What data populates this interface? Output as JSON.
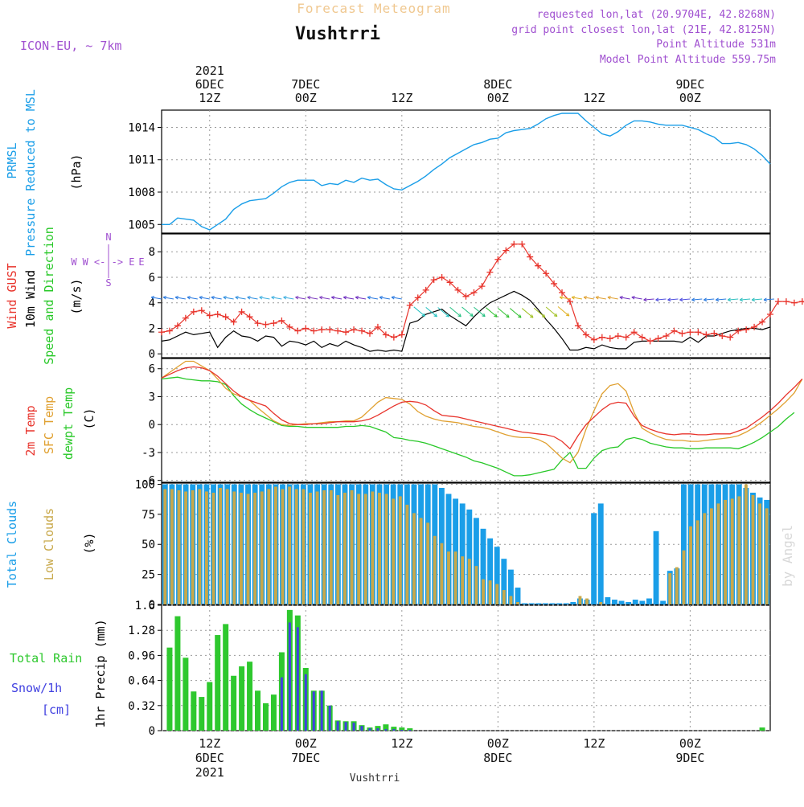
{
  "header": {
    "product_title": "Forecast Meteogram",
    "station": "Vushtrri",
    "model": "ICON-EU, ~ 7km",
    "requested": "requested lon,lat (20.9704E, 42.8268N)",
    "gridpoint": "grid point closest lon,lat (21E, 42.8125N)",
    "point_alt": "Point Altitude 531m",
    "model_alt": "Model Point Altitude 559.75m",
    "watermark": "by Angel",
    "footer_station": "Vushtrri"
  },
  "colors": {
    "pressure": "#1a9ee8",
    "gust": "#e8342c",
    "wind": "#000000",
    "t2m": "#e8342c",
    "sfc": "#e0a030",
    "dewpt": "#28c828",
    "total_clouds": "#1a9ee8",
    "low_clouds": "#c8a84a",
    "rain": "#2ec82e",
    "snow": "#4040e0",
    "meta": "#a050d0",
    "title_faint": "#f0c890"
  },
  "chart_data": {
    "time_axis": {
      "start_hour": 0,
      "end_hour": 76,
      "top_labels": [
        {
          "hour": 6,
          "lines": [
            "2021",
            "6DEC",
            "12Z"
          ]
        },
        {
          "hour": 18,
          "lines": [
            "7DEC",
            "00Z"
          ]
        },
        {
          "hour": 30,
          "lines": [
            "12Z"
          ]
        },
        {
          "hour": 42,
          "lines": [
            "8DEC",
            "00Z"
          ]
        },
        {
          "hour": 54,
          "lines": [
            "12Z"
          ]
        },
        {
          "hour": 66,
          "lines": [
            "9DEC",
            "00Z"
          ]
        }
      ],
      "bottom_labels": [
        {
          "hour": 6,
          "lines": [
            "12Z",
            "6DEC",
            "2021"
          ]
        },
        {
          "hour": 18,
          "lines": [
            "00Z",
            "7DEC"
          ]
        },
        {
          "hour": 30,
          "lines": [
            "12Z"
          ]
        },
        {
          "hour": 42,
          "lines": [
            "00Z",
            "8DEC"
          ]
        },
        {
          "hour": 54,
          "lines": [
            "12Z"
          ]
        },
        {
          "hour": 66,
          "lines": [
            "00Z",
            "9DEC"
          ]
        }
      ]
    },
    "pressure": {
      "type": "line",
      "ylabel_lines": [
        "PRMSL",
        "Pressure Reduced to MSL"
      ],
      "unit": "(hPa)",
      "ylim": [
        1004.2,
        1015.6
      ],
      "ticks": [
        1005,
        1008,
        1011,
        1014
      ],
      "values": [
        1005.0,
        1005.0,
        1005.6,
        1005.5,
        1005.4,
        1004.8,
        1004.5,
        1005.0,
        1005.5,
        1006.4,
        1006.9,
        1007.2,
        1007.3,
        1007.4,
        1007.9,
        1008.5,
        1008.9,
        1009.1,
        1009.1,
        1009.1,
        1008.6,
        1008.8,
        1008.7,
        1009.1,
        1008.9,
        1009.3,
        1009.1,
        1009.2,
        1008.7,
        1008.3,
        1008.2,
        1008.6,
        1009.0,
        1009.5,
        1010.1,
        1010.6,
        1011.2,
        1011.6,
        1012.0,
        1012.4,
        1012.6,
        1012.9,
        1013.0,
        1013.5,
        1013.7,
        1013.8,
        1013.9,
        1014.3,
        1014.8,
        1015.1,
        1015.3,
        1015.3,
        1015.3,
        1014.6,
        1014.0,
        1013.4,
        1013.2,
        1013.6,
        1014.2,
        1014.6,
        1014.6,
        1014.5,
        1014.3,
        1014.2,
        1014.2,
        1014.2,
        1014.0,
        1013.8,
        1013.4,
        1013.1,
        1012.5,
        1012.5,
        1012.6,
        1012.4,
        1012.0,
        1011.4,
        1010.6
      ]
    },
    "wind": {
      "type": "line",
      "ylabel_gust": "Wind GUST",
      "ylabel_wind": "10m Wind",
      "ylabel_dir": "Speed and Direction",
      "unit": "(m/s)",
      "compass": {
        "n": "N",
        "s": "S",
        "w": "W",
        "e": "E",
        "we_line": "W <-|-> E"
      },
      "ylim": [
        -0.3,
        9.4
      ],
      "ticks": [
        0,
        2,
        4,
        6,
        8
      ],
      "gust": [
        1.7,
        1.8,
        2.2,
        2.8,
        3.3,
        3.4,
        3.0,
        3.1,
        2.9,
        2.5,
        3.3,
        2.9,
        2.4,
        2.3,
        2.4,
        2.6,
        2.1,
        1.8,
        2.0,
        1.8,
        1.9,
        1.9,
        1.8,
        1.7,
        1.9,
        1.8,
        1.6,
        2.1,
        1.5,
        1.3,
        1.5,
        3.8,
        4.4,
        5.0,
        5.8,
        6.0,
        5.6,
        5.0,
        4.5,
        4.8,
        5.3,
        6.4,
        7.4,
        8.1,
        8.6,
        8.6,
        7.6,
        6.9,
        6.3,
        5.5,
        4.8,
        4.1,
        2.2,
        1.5,
        1.1,
        1.3,
        1.2,
        1.4,
        1.3,
        1.7,
        1.3,
        1.0,
        1.2,
        1.4,
        1.8,
        1.6,
        1.7,
        1.7,
        1.5,
        1.6,
        1.4,
        1.3,
        1.8,
        1.9,
        2.1,
        2.5,
        3.1,
        4.1,
        4.1,
        4.0,
        4.1,
        3.9,
        3.8,
        3.9
      ]
    },
    "wind10m": {
      "values": [
        1.0,
        1.1,
        1.4,
        1.7,
        1.5,
        1.6,
        1.7,
        0.5,
        1.3,
        1.8,
        1.4,
        1.3,
        1.0,
        1.4,
        1.3,
        0.6,
        1.0,
        0.9,
        0.7,
        1.0,
        0.5,
        0.8,
        0.6,
        1.0,
        0.7,
        0.5,
        0.2,
        0.3,
        0.2,
        0.3,
        0.2,
        2.4,
        2.6,
        3.1,
        3.3,
        3.5,
        3.0,
        2.6,
        2.2,
        2.9,
        3.5,
        4.0,
        4.3,
        4.6,
        4.9,
        4.6,
        4.2,
        3.5,
        2.7,
        2.0,
        1.2,
        0.3,
        0.3,
        0.5,
        0.4,
        0.7,
        0.5,
        0.4,
        0.4,
        0.9,
        1.0,
        1.0,
        1.0,
        1.0,
        1.0,
        0.9,
        1.3,
        0.9,
        1.4,
        1.4,
        1.6,
        1.8,
        1.9,
        2.0,
        2.0,
        1.9,
        2.1
      ]
    },
    "temperature": {
      "type": "line",
      "ylabel_t2m": "2m Temp",
      "ylabel_sfc": "SFC Temp",
      "ylabel_dew": "dewpt Temp",
      "unit": "(C)",
      "ylim": [
        -6.2,
        7.1
      ],
      "ticks": [
        -6,
        -3,
        0,
        3,
        6
      ],
      "t2m": [
        5.0,
        5.4,
        5.8,
        6.1,
        6.2,
        6.1,
        5.8,
        5.2,
        4.4,
        3.6,
        3.0,
        2.6,
        2.3,
        2.0,
        1.2,
        0.5,
        0.1,
        0.0,
        0.0,
        0.1,
        0.1,
        0.2,
        0.3,
        0.3,
        0.3,
        0.4,
        0.6,
        1.0,
        1.5,
        2.0,
        2.4,
        2.5,
        2.4,
        2.1,
        1.5,
        1.0,
        0.9,
        0.8,
        0.6,
        0.4,
        0.2,
        0.0,
        -0.2,
        -0.4,
        -0.6,
        -0.8,
        -0.9,
        -1.0,
        -1.1,
        -1.3,
        -1.8,
        -2.6,
        -1.2,
        0.0,
        0.8,
        1.6,
        2.2,
        2.4,
        2.3,
        0.9,
        -0.1,
        -0.5,
        -0.8,
        -1.0,
        -1.1,
        -1.0,
        -1.0,
        -1.1,
        -1.1,
        -1.0,
        -1.0,
        -1.0,
        -0.7,
        -0.4,
        0.2,
        0.8,
        1.5,
        2.3,
        3.2,
        4.0,
        4.9
      ],
      "sfc": [
        5.0,
        5.6,
        6.2,
        6.8,
        6.8,
        6.3,
        5.8,
        4.9,
        3.9,
        3.3,
        3.0,
        2.6,
        1.8,
        1.1,
        0.4,
        0.0,
        -0.1,
        0.0,
        0.1,
        0.1,
        0.2,
        0.3,
        0.3,
        0.4,
        0.4,
        0.8,
        1.6,
        2.4,
        2.9,
        2.8,
        2.7,
        2.2,
        1.4,
        0.9,
        0.6,
        0.4,
        0.3,
        0.2,
        0.0,
        -0.2,
        -0.3,
        -0.5,
        -0.8,
        -1.1,
        -1.3,
        -1.4,
        -1.4,
        -1.6,
        -2.0,
        -2.8,
        -3.6,
        -4.1,
        -3.0,
        -0.5,
        1.5,
        3.3,
        4.2,
        4.4,
        3.6,
        1.3,
        -0.4,
        -0.9,
        -1.3,
        -1.6,
        -1.7,
        -1.7,
        -1.8,
        -1.8,
        -1.7,
        -1.6,
        -1.5,
        -1.4,
        -1.2,
        -0.8,
        -0.3,
        0.3,
        1.0,
        1.7,
        2.5,
        3.4,
        4.9
      ],
      "dewpt": [
        4.9,
        5.0,
        5.1,
        4.9,
        4.8,
        4.7,
        4.7,
        4.6,
        4.3,
        3.1,
        2.2,
        1.6,
        1.1,
        0.7,
        0.3,
        -0.1,
        -0.2,
        -0.2,
        -0.3,
        -0.3,
        -0.3,
        -0.3,
        -0.3,
        -0.2,
        -0.2,
        -0.1,
        -0.2,
        -0.5,
        -0.8,
        -1.4,
        -1.5,
        -1.7,
        -1.8,
        -2.0,
        -2.3,
        -2.6,
        -2.9,
        -3.2,
        -3.5,
        -3.9,
        -4.1,
        -4.4,
        -4.7,
        -5.1,
        -5.5,
        -5.5,
        -5.4,
        -5.2,
        -5.0,
        -4.8,
        -3.8,
        -3.0,
        -4.7,
        -4.7,
        -3.6,
        -2.8,
        -2.5,
        -2.4,
        -1.6,
        -1.4,
        -1.6,
        -2.0,
        -2.2,
        -2.4,
        -2.5,
        -2.5,
        -2.6,
        -2.6,
        -2.5,
        -2.5,
        -2.5,
        -2.5,
        -2.6,
        -2.3,
        -1.9,
        -1.4,
        -0.8,
        -0.2,
        0.6,
        1.3
      ]
    },
    "clouds": {
      "type": "bar",
      "ylabel_total": "Total Clouds",
      "ylabel_low": "Low Clouds",
      "unit": "(%)",
      "ylim": [
        0,
        101
      ],
      "ticks": [
        0,
        25,
        50,
        75,
        100
      ],
      "total": [
        100,
        100,
        100,
        100,
        100,
        100,
        100,
        100,
        100,
        100,
        100,
        100,
        100,
        100,
        100,
        100,
        100,
        100,
        100,
        100,
        100,
        100,
        100,
        100,
        100,
        100,
        100,
        100,
        100,
        100,
        100,
        100,
        100,
        100,
        100,
        100,
        100,
        100,
        100,
        100,
        97,
        92,
        88,
        84,
        79,
        72,
        63,
        55,
        48,
        38,
        29,
        14,
        1,
        1,
        1,
        1,
        1,
        1,
        1,
        2,
        5,
        4,
        76,
        84,
        6,
        4,
        3,
        2,
        4,
        3,
        5,
        61,
        3,
        28,
        30,
        100,
        100,
        100,
        100,
        100,
        100,
        100,
        100,
        100,
        97,
        93,
        89,
        87
      ],
      "low": [
        96,
        96,
        95,
        94,
        95,
        96,
        94,
        93,
        97,
        96,
        94,
        93,
        92,
        93,
        94,
        96,
        98,
        96,
        98,
        96,
        96,
        93,
        94,
        95,
        95,
        91,
        93,
        95,
        92,
        92,
        94,
        93,
        92,
        88,
        90,
        83,
        76,
        72,
        68,
        57,
        51,
        44,
        44,
        40,
        38,
        32,
        21,
        20,
        17,
        12,
        7,
        2,
        0,
        0,
        0,
        0,
        0,
        0,
        0,
        0,
        7,
        5,
        0,
        2,
        0,
        0,
        0,
        0,
        0,
        0,
        0,
        0,
        0,
        26,
        31,
        45,
        65,
        70,
        76,
        80,
        84,
        87,
        88,
        90,
        100,
        91,
        84,
        80
      ]
    },
    "precip": {
      "type": "bar",
      "ylabel_rain": "Total Rain",
      "ylabel_snow": "Snow/1h",
      "ylabel_unit2": "[cm]",
      "ylabel_precip": "1hr Precip (mm)",
      "ylim": [
        0,
        1.6
      ],
      "ticks": [
        0,
        0.32,
        0.64,
        0.96,
        1.28,
        1.6
      ],
      "tick_labels": [
        "0",
        "0.32",
        "0.64",
        "0.96",
        "1.28",
        "1.6"
      ],
      "rain": [
        1.06,
        1.46,
        0.93,
        0.5,
        0.43,
        0.62,
        1.22,
        1.36,
        0.7,
        0.82,
        0.88,
        0.51,
        0.35,
        0.46,
        1.0,
        1.54,
        1.47,
        0.8,
        0.51,
        0.51,
        0.32,
        0.13,
        0.12,
        0.12,
        0.07,
        0.04,
        0.06,
        0.08,
        0.05,
        0.04,
        0.03,
        0.0,
        0.0,
        0.0,
        0.0,
        0.0,
        0.0,
        0.0,
        0.0,
        0.0,
        0.0,
        0.0,
        0.0,
        0.0,
        0.0,
        0.0,
        0.0,
        0.0,
        0.0,
        0.0,
        0.0,
        0.0,
        0.0,
        0.0,
        0.0,
        0.0,
        0.0,
        0.0,
        0.0,
        0.0,
        0.0,
        0.0,
        0.0,
        0.0,
        0.0,
        0.0,
        0.0,
        0.0,
        0.0,
        0.0,
        0.0,
        0.0,
        0.0,
        0.0,
        0.04
      ],
      "snow": [
        0,
        0,
        0,
        0,
        0,
        0,
        0,
        0,
        0,
        0,
        0,
        0,
        0,
        0,
        0.68,
        1.38,
        1.32,
        0.72,
        0.5,
        0.51,
        0.32,
        0.12,
        0.11,
        0.1,
        0.06,
        0.03,
        0.03,
        0.02,
        0.02,
        0.01,
        0.01,
        0,
        0,
        0,
        0,
        0,
        0,
        0,
        0,
        0,
        0,
        0,
        0,
        0,
        0,
        0,
        0,
        0,
        0,
        0,
        0,
        0,
        0,
        0,
        0,
        0,
        0,
        0,
        0,
        0,
        0,
        0,
        0,
        0,
        0,
        0,
        0,
        0,
        0,
        0,
        0,
        0,
        0,
        0,
        0
      ]
    }
  }
}
